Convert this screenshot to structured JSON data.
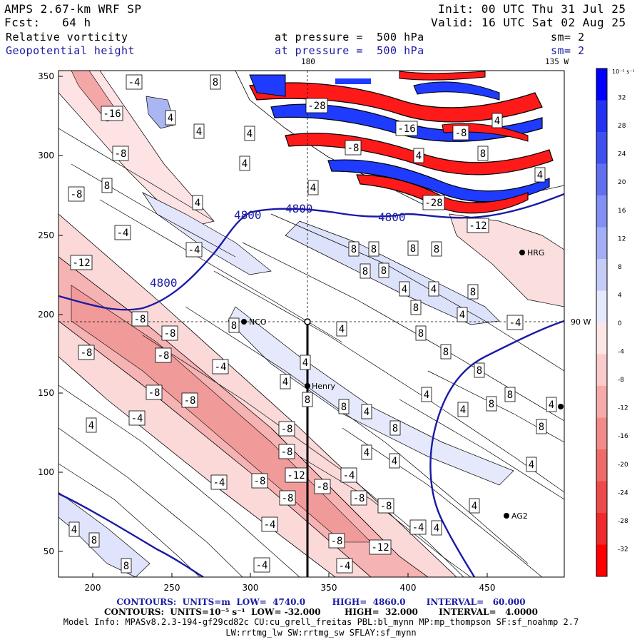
{
  "header": {
    "model": "AMPS 2.67-km WRF SP",
    "init": "Init: 00 UTC Thu 31 Jul 25",
    "fcst": "Fcst:   64 h",
    "valid": "Valid: 16 UTC Sat 02 Aug 25",
    "field1_name": "Relative vorticity",
    "field1_level": "at pressure =  500 hPa",
    "field1_sm": "sm= 2",
    "field2_name": "Geopotential height",
    "field2_level": "at pressure =  500 hPa",
    "field2_sm": "sm= 2"
  },
  "map": {
    "x_ticks": [
      "200",
      "250",
      "300",
      "350",
      "400",
      "450"
    ],
    "y_ticks": [
      "350",
      "300",
      "250",
      "200",
      "150",
      "100",
      "50"
    ],
    "meridian_top_label": "180",
    "meridian_top_label2": "135 W",
    "parallel_right_label": "90 W",
    "height_labels": [
      "4800",
      "4800",
      "4800",
      "4800"
    ],
    "stations": [
      {
        "name": "NCO"
      },
      {
        "name": "Henry"
      },
      {
        "name": "HRG"
      },
      {
        "name": "AG2"
      }
    ],
    "contour_labels_pos": [
      "4",
      "8"
    ],
    "contour_labels_neg": [
      "-4",
      "-8",
      "-12",
      "-16",
      "-28"
    ],
    "colors": {
      "height_contour": "#1a1aa6",
      "positive_vorticity": "#3344dd",
      "negative_vorticity": "#ee2222"
    }
  },
  "colorbar": {
    "unit": "10⁻⁵ s⁻¹",
    "labels": [
      "32",
      "28",
      "24",
      "20",
      "16",
      "12",
      "8",
      "4",
      "0",
      "-4",
      "-8",
      "-12",
      "-16",
      "-20",
      "-24",
      "-28",
      "-32"
    ]
  },
  "footer": {
    "line1": "CONTOURS:  UNITS=m  LOW=  4740.0         HIGH=  4860.0       INTERVAL=   60.000",
    "line2": "CONTOURS:  UNITS=10⁻⁵ s⁻¹  LOW= -32.000        HIGH=  32.000       INTERVAL=   4.0000",
    "line3": "Model Info: MPASv8.2.3-194-gf29cd82c CU:cu_grell_freitas PBL:bl_mynn MP:mp_thompson SF:sf_noahmp 2.7",
    "line4": "LW:rrtmg_lw SW:rrtmg_sw SFLAY:sf_mynn"
  }
}
